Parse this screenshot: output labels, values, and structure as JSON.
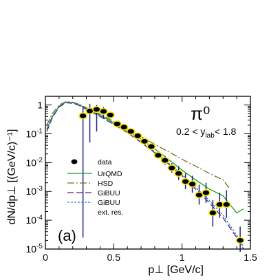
{
  "chart_data": {
    "type": "line",
    "title": "",
    "xlabel": "p⊥  [GeV/c]",
    "ylabel": "dN/dp⊥  [(GeV/c)⁻¹]",
    "xlim": [
      0,
      1.5
    ],
    "ylim": [
      1e-05,
      2
    ],
    "yscale": "log",
    "grid": false,
    "legend_position": "center-left",
    "annotations": {
      "particle": "π⁰",
      "rapidity_prefix": "0.2 < y",
      "rapidity_sub": "lab",
      "rapidity_suffix": "< 1.8",
      "panel": "(a)"
    },
    "x_ticks": [
      {
        "value": 0,
        "label": "0"
      },
      {
        "value": 0.5,
        "label": "0.5"
      },
      {
        "value": 1,
        "label": "1"
      },
      {
        "value": 1.5,
        "label": "1.5"
      }
    ],
    "y_ticks": [
      {
        "value": 1,
        "label": "1"
      },
      {
        "value": 0.1,
        "base": "10",
        "exp": "-1"
      },
      {
        "value": 0.01,
        "base": "10",
        "exp": "-2"
      },
      {
        "value": 0.001,
        "base": "10",
        "exp": "-3"
      },
      {
        "value": 0.0001,
        "base": "10",
        "exp": "-4"
      },
      {
        "value": 1e-05,
        "base": "10",
        "exp": "-5"
      }
    ],
    "legend": {
      "data": "data",
      "urqmd": "UrQMD",
      "hsd": "HSD",
      "gibuu1": "GiBUU",
      "gibuu2": "GiBUU",
      "gibuu2_note": "ext. res."
    },
    "colors": {
      "data_fill": "#000000",
      "data_halo": "#f5e400",
      "error_bar": "#1a237e",
      "urqmd": "#1aa01a",
      "hsd": "#7a6a1e",
      "gibuu1": "#6a1b6a",
      "gibuu2": "#1e88c8"
    },
    "data": [
      {
        "x": 0.275,
        "y": 0.42,
        "lo": 2.5e-05,
        "hi": 0.9
      },
      {
        "x": 0.325,
        "y": 0.62,
        "lo": 0.05,
        "hi": 1.1
      },
      {
        "x": 0.375,
        "y": 0.7,
        "lo": 0.12,
        "hi": 1.0
      },
      {
        "x": 0.425,
        "y": 0.6,
        "lo": 0.35,
        "hi": 0.85
      },
      {
        "x": 0.475,
        "y": 0.45,
        "lo": 0.35,
        "hi": 0.55
      },
      {
        "x": 0.525,
        "y": 0.22,
        "lo": 0.17,
        "hi": 0.28
      },
      {
        "x": 0.575,
        "y": 0.17,
        "lo": 0.13,
        "hi": 0.21
      },
      {
        "x": 0.625,
        "y": 0.12,
        "lo": 0.095,
        "hi": 0.15
      },
      {
        "x": 0.675,
        "y": 0.085,
        "lo": 0.068,
        "hi": 0.105
      },
      {
        "x": 0.725,
        "y": 0.055,
        "lo": 0.044,
        "hi": 0.068
      },
      {
        "x": 0.775,
        "y": 0.036,
        "lo": 0.028,
        "hi": 0.045
      },
      {
        "x": 0.825,
        "y": 0.018,
        "lo": 0.014,
        "hi": 0.023
      },
      {
        "x": 0.875,
        "y": 0.012,
        "lo": 0.0085,
        "hi": 0.017
      },
      {
        "x": 0.925,
        "y": 0.0065,
        "lo": 0.0045,
        "hi": 0.0095
      },
      {
        "x": 0.975,
        "y": 0.0042,
        "lo": 0.0025,
        "hi": 0.0075
      },
      {
        "x": 1.025,
        "y": 0.0022,
        "lo": 0.0012,
        "hi": 0.0042
      },
      {
        "x": 1.075,
        "y": 0.0018,
        "lo": 0.0009,
        "hi": 0.0035
      },
      {
        "x": 1.125,
        "y": 0.00075,
        "lo": 0.00035,
        "hi": 0.0017
      },
      {
        "x": 1.175,
        "y": 0.0009,
        "lo": 0.0004,
        "hi": 0.002
      },
      {
        "x": 1.225,
        "y": 0.00018,
        "lo": 6e-05,
        "hi": 0.0005
      },
      {
        "x": 1.275,
        "y": 0.00035,
        "lo": 0.00012,
        "hi": 0.0009
      },
      {
        "x": 1.325,
        "y": 0.00035,
        "lo": 0.00012,
        "hi": 0.0011
      },
      {
        "x": 1.425,
        "y": 2e-05,
        "lo": 8e-06,
        "hi": 6e-05
      }
    ],
    "series": [
      {
        "key": "urqmd",
        "x": [
          0.01,
          0.05,
          0.1,
          0.15,
          0.2,
          0.25,
          0.3,
          0.4,
          0.5,
          0.6,
          0.7,
          0.8,
          0.9,
          1.0,
          1.1,
          1.2,
          1.3,
          1.35,
          1.4,
          1.45
        ],
        "y": [
          0.15,
          0.4,
          0.9,
          1.25,
          1.2,
          1.0,
          0.75,
          0.45,
          0.24,
          0.13,
          0.065,
          0.03,
          0.013,
          0.0055,
          0.0025,
          0.0012,
          0.0007,
          0.00035,
          0.00018,
          0.00025
        ]
      },
      {
        "key": "hsd",
        "x": [
          0.01,
          0.05,
          0.1,
          0.15,
          0.2,
          0.25,
          0.3,
          0.4,
          0.5,
          0.6,
          0.7,
          0.8,
          0.9,
          1.0,
          1.1,
          1.2,
          1.3,
          1.35
        ],
        "y": [
          0.2,
          0.5,
          1.0,
          1.3,
          1.25,
          1.05,
          0.8,
          0.48,
          0.27,
          0.15,
          0.08,
          0.043,
          0.024,
          0.013,
          0.0075,
          0.0042,
          0.0025,
          0.0012
        ]
      },
      {
        "key": "gibuu1",
        "x": [
          0.01,
          0.05,
          0.1,
          0.15,
          0.2,
          0.25,
          0.3,
          0.4,
          0.5,
          0.6,
          0.7,
          0.8,
          0.9,
          1.0,
          1.1,
          1.2,
          1.3,
          1.4,
          1.45
        ],
        "y": [
          0.12,
          0.35,
          0.85,
          1.2,
          1.15,
          0.95,
          0.7,
          0.4,
          0.21,
          0.11,
          0.05,
          0.022,
          0.009,
          0.0035,
          0.0012,
          0.0004,
          0.00012,
          2.5e-05,
          1e-05
        ]
      },
      {
        "key": "gibuu2",
        "x": [
          0.01,
          0.05,
          0.1,
          0.15,
          0.2,
          0.25,
          0.3,
          0.4,
          0.5,
          0.6,
          0.7,
          0.8,
          0.9,
          1.0,
          1.1,
          1.2,
          1.3,
          1.4,
          1.45
        ],
        "y": [
          0.14,
          0.38,
          0.9,
          1.25,
          1.2,
          1.0,
          0.75,
          0.42,
          0.22,
          0.115,
          0.053,
          0.024,
          0.0098,
          0.0039,
          0.0014,
          0.00048,
          0.00015,
          3e-05,
          1.2e-05
        ]
      }
    ]
  }
}
